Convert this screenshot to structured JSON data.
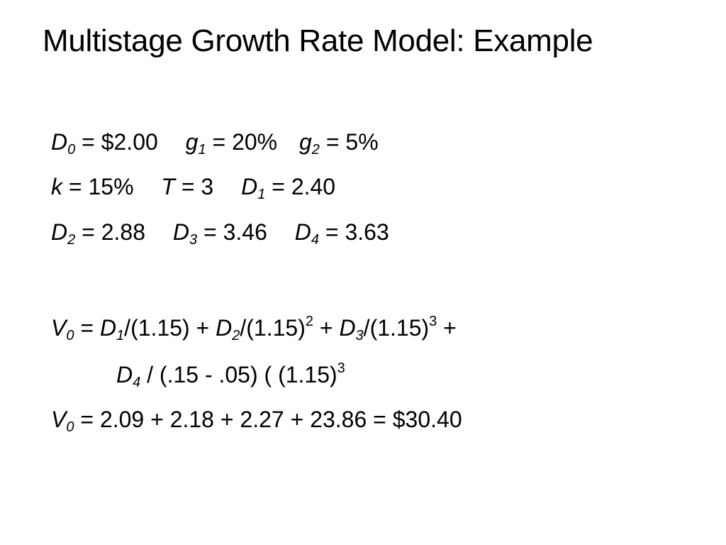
{
  "title": "Multistage Growth Rate Model: Example",
  "given": {
    "D0": {
      "sym": "D",
      "sub": "0",
      "rest": " = $2.00"
    },
    "g1": {
      "sym": "g",
      "sub": "1",
      "rest": " = 20%"
    },
    "g2": {
      "sym": "g",
      "sub": "2",
      "rest": " = 5%"
    },
    "k": {
      "sym": "k",
      "rest": " = 15%"
    },
    "T": {
      "sym": "T",
      "rest": " = 3"
    },
    "D1": {
      "sym": "D",
      "sub": "1",
      "rest": " = 2.40"
    },
    "D2": {
      "sym": "D",
      "sub": "2",
      "rest": " = 2.88"
    },
    "D3": {
      "sym": "D",
      "sub": "3",
      "rest": " = 3.46"
    },
    "D4": {
      "sym": "D",
      "sub": "4",
      "rest": " = 3.63"
    }
  },
  "formula": {
    "v_sym": "V",
    "v_sub": "0",
    "eq": " = ",
    "t1_sym": "D",
    "t1_sub": "1",
    "t1_rest": "/(1.15) + ",
    "t2_sym": "D",
    "t2_sub": "2",
    "t2_rest": "/(1.15)",
    "t2_exp": "2",
    "plus1": " + ",
    "t3_sym": "D",
    "t3_sub": "3",
    "t3_rest": "/(1.15)",
    "t3_exp": "3",
    "plus2": " +",
    "t4_sym": "D",
    "t4_sub": "4",
    "t4_rest": " / (.15 - .05) ( (1.15)",
    "t4_exp": "3"
  },
  "result": {
    "v_sym": "V",
    "v_sub": "0",
    "rest": " = 2.09 + 2.18 + 2.27 + 23.86 = $30.40"
  }
}
